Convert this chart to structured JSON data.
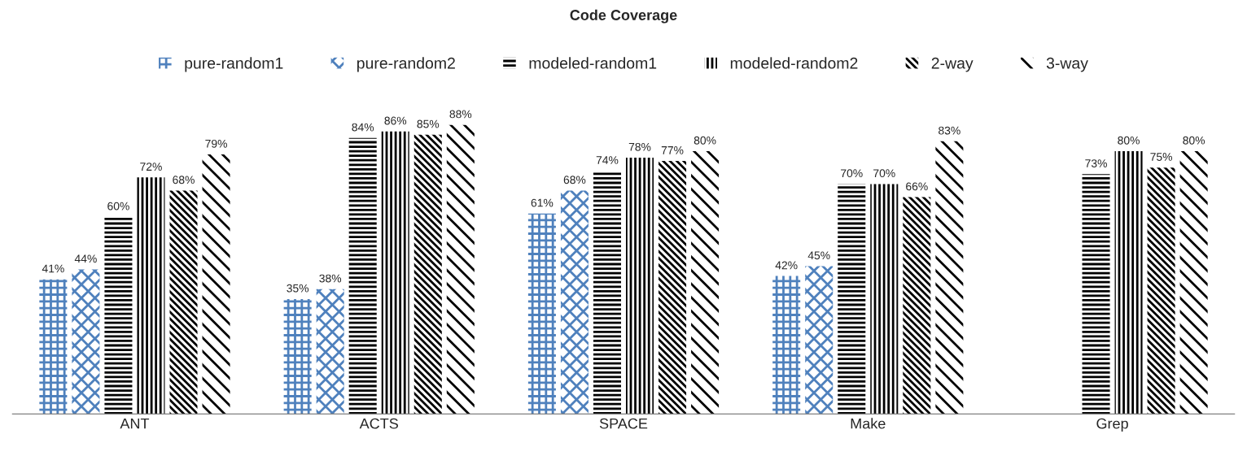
{
  "chart_data": {
    "type": "bar",
    "title": "Code Coverage",
    "categories": [
      "ANT",
      "ACTS",
      "SPACE",
      "Make",
      "Grep"
    ],
    "series": [
      {
        "name": "pure-random1",
        "color": "#4f81bd",
        "values": [
          41,
          35,
          61,
          42,
          null
        ],
        "value_labels": [
          "41%",
          "35%",
          "61%",
          "42%",
          null
        ]
      },
      {
        "name": "pure-random2",
        "color": "#4f81bd",
        "values": [
          44,
          38,
          68,
          45,
          null
        ],
        "value_labels": [
          "44%",
          "38%",
          "68%",
          "45%",
          null
        ]
      },
      {
        "name": "modeled-random1",
        "color": "#000000",
        "values": [
          60,
          84,
          74,
          70,
          73
        ],
        "value_labels": [
          "60%",
          "84%",
          "74%",
          "70%",
          "73%"
        ]
      },
      {
        "name": "modeled-random2",
        "color": "#000000",
        "values": [
          72,
          86,
          78,
          70,
          80
        ],
        "value_labels": [
          "72%",
          "86%",
          "78%",
          "70%",
          "80%"
        ]
      },
      {
        "name": "2-way",
        "color": "#000000",
        "values": [
          68,
          85,
          77,
          66,
          75
        ],
        "value_labels": [
          "68%",
          "85%",
          "77%",
          "66%",
          "75%"
        ]
      },
      {
        "name": "3-way",
        "color": "#000000",
        "values": [
          79,
          88,
          80,
          83,
          80
        ],
        "value_labels": [
          "79%",
          "88%",
          "80%",
          "83%",
          "80%"
        ]
      }
    ],
    "legend": "top",
    "grid": false,
    "tick_labels": "x"
  }
}
